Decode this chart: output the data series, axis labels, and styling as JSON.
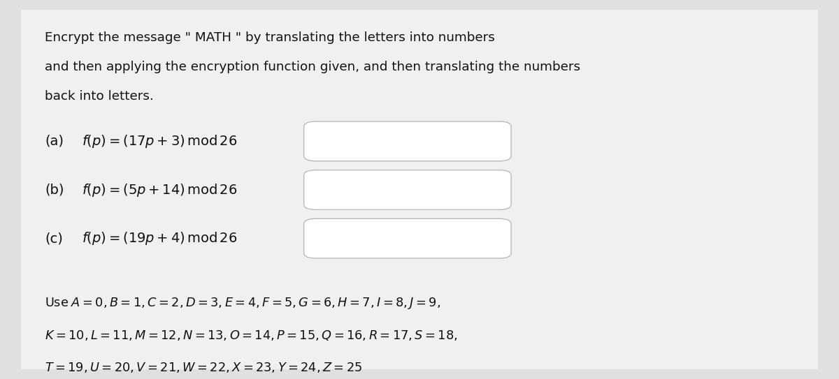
{
  "bg_color": "#e0e0e0",
  "content_bg": "#f0f0f0",
  "box_facecolor": "#ffffff",
  "box_edgecolor": "#bbbbbb",
  "text_color": "#111111",
  "intro_lines": [
    "Encrypt the message \" MATH \" by translating the letters into numbers",
    "and then applying the encryption function given, and then translating the numbers",
    "back into letters."
  ],
  "parts": [
    {
      "label": "(a)",
      "formula": "$f(p) = (17p + 3)\\,\\mathrm{mod}\\,26$"
    },
    {
      "label": "(b)",
      "formula": "$f(p) = (5p + 14)\\,\\mathrm{mod}\\,26$"
    },
    {
      "label": "(c)",
      "formula": "$f(p) = (19p + 4)\\,\\mathrm{mod}\\,26$"
    }
  ],
  "alphabet_lines": [
    "$\\mathrm{Use}\\; A = 0, B = 1, C = 2, D = 3, E = 4, F = 5, G = 6, H = 7, I = 8, J = 9,$",
    "$K = 10, L = 11, M = 12, N = 13, O = 14, P = 15, Q = 16, R = 17, S = 18,$",
    "$T = 19, U = 20, V = 21, W = 22, X = 23, Y = 24, Z = 25$"
  ],
  "figsize": [
    12.0,
    5.43
  ],
  "dpi": 100
}
